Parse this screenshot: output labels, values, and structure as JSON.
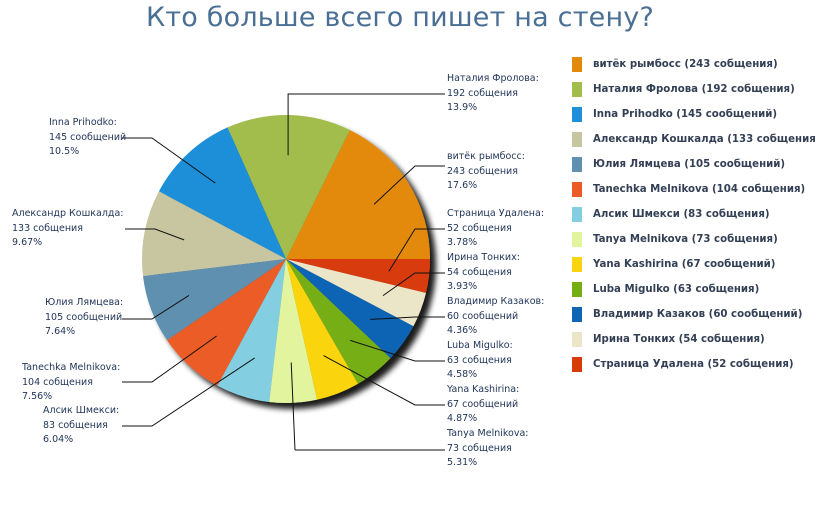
{
  "chart_data": {
    "type": "pie",
    "title": "Кто больше всего пишет на стену?",
    "start_angle_deg": 0,
    "direction": "counterclockwise",
    "legend_position": "right",
    "slices": [
      {
        "name": "витёк рымбосс",
        "value": 243,
        "unit": "собщения",
        "percent": "17.6%",
        "color": "#e38a0c",
        "legend": "витёк рымбосс (243 собщения)"
      },
      {
        "name": "Наталия Фролова",
        "value": 192,
        "unit": "собщения",
        "percent": "13.9%",
        "color": "#a2bd4c",
        "legend": "Наталия Фролова (192 собщения)"
      },
      {
        "name": "Inna Prihodko",
        "value": 145,
        "unit": "сообщений",
        "percent": "10.5%",
        "color": "#1e8fd8",
        "legend": "Inna Prihodko (145 сообщений)"
      },
      {
        "name": "Александр Кошкалда",
        "value": 133,
        "unit": "собщения",
        "percent": "9.67%",
        "color": "#c8c6a0",
        "legend": "Александр Кошкалда (133 собщения"
      },
      {
        "name": "Юлия Лямцева",
        "value": 105,
        "unit": "сообщений",
        "percent": "7.64%",
        "color": "#6090b0",
        "legend": "Юлия Лямцева (105 сообщений)"
      },
      {
        "name": "Tanechka Melnikova",
        "value": 104,
        "unit": "собщения",
        "percent": "7.56%",
        "color": "#ec5b27",
        "legend": "Tanechka Melnikova (104 собщения)"
      },
      {
        "name": "Алсик Шмекси",
        "value": 83,
        "unit": "собщения",
        "percent": "6.04%",
        "color": "#84cee2",
        "legend": "Алсик Шмекси (83 собщения)"
      },
      {
        "name": "Tanya Melnikova",
        "value": 73,
        "unit": "собщения",
        "percent": "5.31%",
        "color": "#e2f59e",
        "legend": "Tanya Melnikova (73 собщения)"
      },
      {
        "name": "Yana Kashirina",
        "value": 67,
        "unit": "сообщений",
        "percent": "4.87%",
        "color": "#fad40e",
        "legend": "Yana Kashirina (67 сообщений)"
      },
      {
        "name": "Luba Migulko",
        "value": 63,
        "unit": "собщения",
        "percent": "4.58%",
        "color": "#76ae12",
        "legend": "Luba Migulko (63 собщения)"
      },
      {
        "name": "Владимир Казаков",
        "value": 60,
        "unit": "сообщений",
        "percent": "4.36%",
        "color": "#0f64b4",
        "legend": "Владимир Казаков (60 сообщений)"
      },
      {
        "name": "Ирина Тонких",
        "value": 54,
        "unit": "собщения",
        "percent": "3.93%",
        "color": "#ece6c8",
        "legend": "Ирина Тонких (54 собщения)"
      },
      {
        "name": "Страница Удалена",
        "value": 52,
        "unit": "собщения",
        "percent": "3.78%",
        "color": "#d83a08",
        "legend": "Страница Удалена (52 собщения)"
      }
    ]
  },
  "labels": [
    {
      "name": "витёк рымбосс:",
      "count": "243 собщения",
      "pct": "17.6%"
    },
    {
      "name": "Наталия Фролова:",
      "count": "192 собщения",
      "pct": "13.9%"
    },
    {
      "name": "Inna Prihodko:",
      "count": "145 сообщений",
      "pct": "10.5%"
    },
    {
      "name": "Александр Кошкалда:",
      "count": "133 собщения",
      "pct": "9.67%"
    },
    {
      "name": "Юлия Лямцева:",
      "count": "105 сообщений",
      "pct": "7.64%"
    },
    {
      "name": "Tanechka Melnikova:",
      "count": "104 собщения",
      "pct": "7.56%"
    },
    {
      "name": "Алсик Шмекси:",
      "count": "83 собщения",
      "pct": "6.04%"
    },
    {
      "name": "Tanya Melnikova:",
      "count": "73 собщения",
      "pct": "5.31%"
    },
    {
      "name": "Yana Kashirina:",
      "count": "67 сообщений",
      "pct": "4.87%"
    },
    {
      "name": "Luba Migulko:",
      "count": "63 собщения",
      "pct": "4.58%"
    },
    {
      "name": "Владимир Казаков:",
      "count": "60 сообщений",
      "pct": "4.36%"
    },
    {
      "name": "Ирина Тонких:",
      "count": "54 собщения",
      "pct": "3.93%"
    },
    {
      "name": "Страница Удалена:",
      "count": "52 собщения",
      "pct": "3.78%"
    }
  ]
}
